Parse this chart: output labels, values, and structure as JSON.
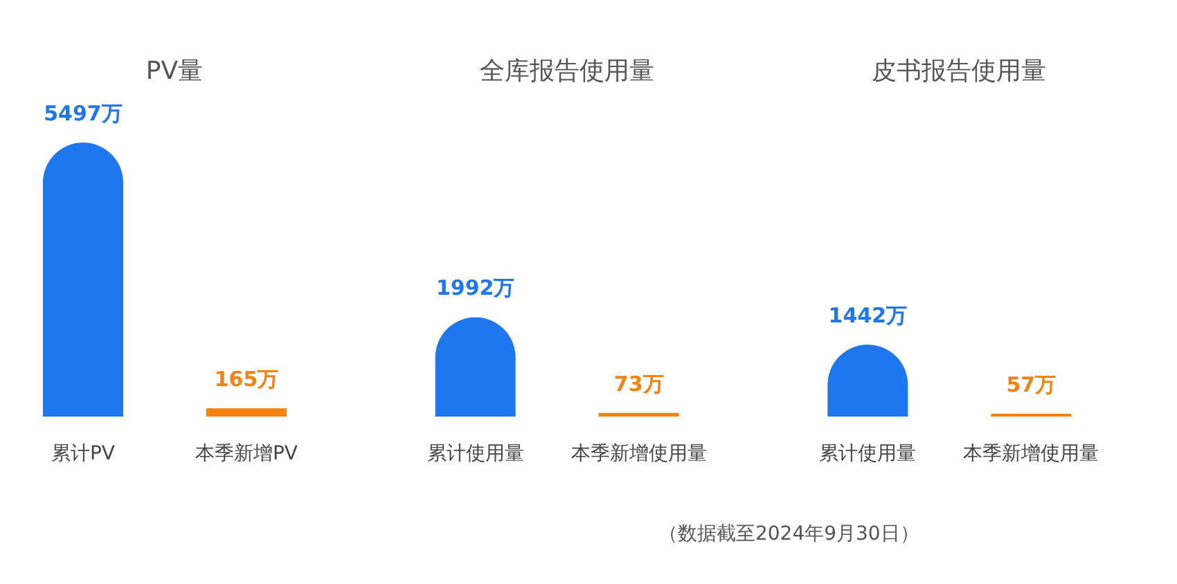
{
  "chart_data": [
    {
      "type": "bar",
      "title": "PV量",
      "categories": [
        "累计PV",
        "本季新增PV"
      ],
      "values": [
        5497,
        165
      ],
      "colors": [
        "#1f77f0",
        "#f5820f"
      ],
      "value_labels": [
        "5497万",
        "165万"
      ],
      "tick_labels": "x"
    },
    {
      "type": "bar",
      "title": "全库报告使用量",
      "categories": [
        "累计使用量",
        "本季新增使用量"
      ],
      "values": [
        1992,
        73
      ],
      "colors": [
        "#1f77f0",
        "#f5820f"
      ],
      "value_labels": [
        "1992万",
        "73万"
      ],
      "tick_labels": "x"
    },
    {
      "type": "bar",
      "title": "皮书报告使用量",
      "categories": [
        "累计使用量",
        "本季新增使用量"
      ],
      "values": [
        1442,
        57
      ],
      "colors": [
        "#1f77f0",
        "#f5820f"
      ],
      "value_labels": [
        "1442万",
        "57万"
      ],
      "tick_labels": "x",
      "annotations": [
        "（数据截至2024年9月30日）"
      ]
    }
  ]
}
